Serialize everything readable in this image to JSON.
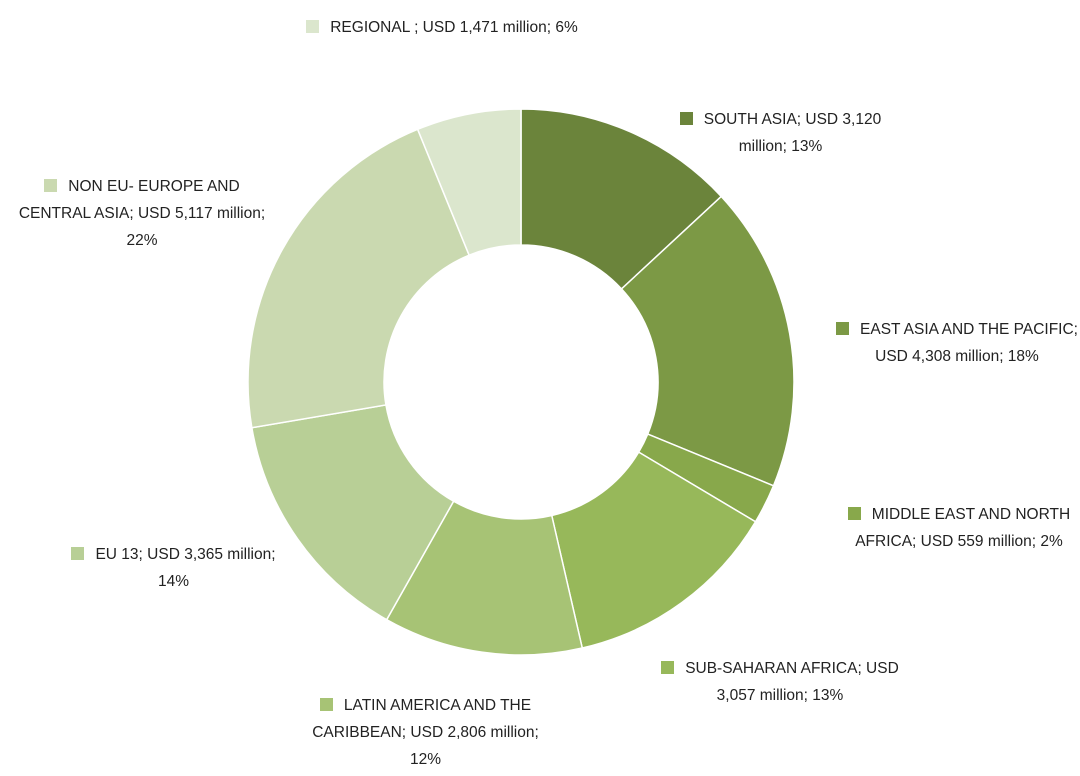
{
  "chart_data": {
    "type": "donut",
    "values": [
      3120,
      4308,
      559,
      3057,
      2806,
      3365,
      5117,
      1471
    ],
    "value_labels": [
      "SOUTH ASIA; USD 3,120 million; 13%",
      "EAST ASIA AND THE PACIFIC; USD 4,308 million; 18%",
      "MIDDLE EAST AND NORTH AFRICA; USD 559 million; 2%",
      "SUB-SAHARAN AFRICA; USD 3,057 million; 13%",
      "LATIN AMERICA AND THE CARIBBEAN; USD 2,806 million; 12%",
      "EU 13; USD 3,365 million; 14%",
      "NON EU- EUROPE AND CENTRAL ASIA; USD 5,117 million; 22%",
      "REGIONAL ; USD 1,471 million; 6%"
    ],
    "colors": [
      "#6b843b",
      "#7c9945",
      "#88a84b",
      "#97b85a",
      "#a7c375",
      "#b8cf96",
      "#cad9b0",
      "#dbe6cd"
    ]
  }
}
